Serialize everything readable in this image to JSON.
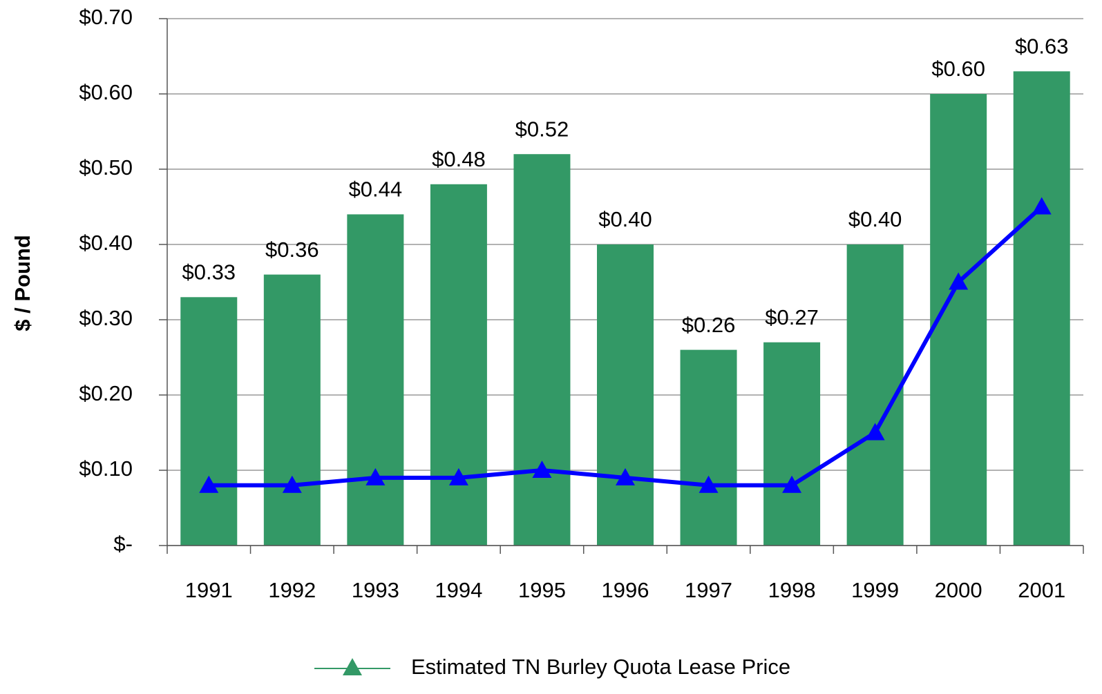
{
  "chart_data": {
    "type": "bar",
    "y_label": "$ / Pound",
    "categories": [
      "1991",
      "1992",
      "1993",
      "1994",
      "1995",
      "1996",
      "1997",
      "1998",
      "1999",
      "2000",
      "2001"
    ],
    "series": [
      {
        "type": "bar",
        "color": "#339966",
        "values": [
          0.33,
          0.36,
          0.44,
          0.48,
          0.52,
          0.4,
          0.26,
          0.27,
          0.4,
          0.6,
          0.63
        ],
        "value_labels": [
          "$0.33",
          "$0.36",
          "$0.44",
          "$0.48",
          "$0.52",
          "$0.40",
          "$0.26",
          "$0.27",
          "$0.40",
          "$0.60",
          "$0.63"
        ]
      },
      {
        "type": "line",
        "name": "Estimated TN Burley Quota Lease Price",
        "color": "#0000ff",
        "legend_color": "#339966",
        "values": [
          0.08,
          0.08,
          0.09,
          0.09,
          0.1,
          0.09,
          0.08,
          0.08,
          0.15,
          0.35,
          0.45
        ]
      }
    ],
    "ylim": [
      0,
      0.7
    ],
    "yticks": [
      {
        "value": 0,
        "label": "$-"
      },
      {
        "value": 0.1,
        "label": "$0.10"
      },
      {
        "value": 0.2,
        "label": "$0.20"
      },
      {
        "value": 0.3,
        "label": "$0.30"
      },
      {
        "value": 0.4,
        "label": "$0.40"
      },
      {
        "value": 0.5,
        "label": "$0.50"
      },
      {
        "value": 0.6,
        "label": "$0.60"
      },
      {
        "value": 0.7,
        "label": "$0.70"
      }
    ],
    "grid": true,
    "legend": "bottom"
  }
}
